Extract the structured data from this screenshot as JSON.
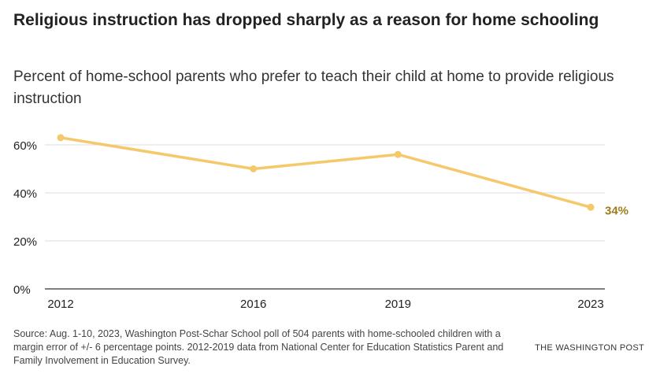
{
  "header": {
    "title": "Religious instruction has dropped sharply as a reason for home schooling",
    "subtitle": "Percent of home-school parents who prefer to teach their child at home to provide religious instruction"
  },
  "footer": {
    "source": "Source: Aug. 1-10, 2023, Washington Post-Schar School poll of 504 parents with home-schooled children with a margin error of +/- 6 percentage points. 2012-2019 data from National Center for Education Statistics Parent and Family Involvement in Education Survey.",
    "brand": "THE WASHINGTON POST"
  },
  "chart_data": {
    "type": "line",
    "x": [
      2012,
      2016,
      2019,
      2023
    ],
    "series": [
      {
        "values": [
          63,
          50,
          56,
          34
        ],
        "color": "#f5c96b"
      }
    ],
    "end_label": "34%",
    "end_label_color": "#9c7d1c",
    "xlim": [
      2012,
      2023
    ],
    "ylim": [
      0,
      60
    ],
    "yticks": [
      0,
      20,
      40,
      60
    ],
    "ytick_labels": [
      "0%",
      "20%",
      "40%",
      "60%"
    ],
    "xtick_labels": [
      "2012",
      "2016",
      "2019",
      "2023"
    ],
    "grid": true
  }
}
